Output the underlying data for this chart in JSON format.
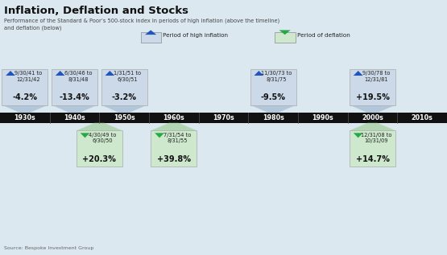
{
  "title": "Inflation, Deflation and Stocks",
  "subtitle": "Performance of the Standard & Poor’s 500-stock index in periods of high inflation (above the timeline)\nand deflation (below)",
  "source": "Source: Bespoke Investment Group",
  "bg_color": "#dce8f0",
  "timeline_labels": [
    "1930s",
    "1940s",
    "1950s",
    "1960s",
    "1970s",
    "1980s",
    "1990s",
    "2000s",
    "2010s"
  ],
  "inflation_boxes": [
    {
      "date_range": "9/30/41 to\n12/31/42",
      "value": "-4.2%",
      "col": 0.5
    },
    {
      "date_range": "6/30/46 to\n8/31/48",
      "value": "-13.4%",
      "col": 1.5
    },
    {
      "date_range": "1/31/51 to\n6/30/51",
      "value": "-3.2%",
      "col": 2.5
    },
    {
      "date_range": "11/30/73 to\n8/31/75",
      "value": "-9.5%",
      "col": 5.5
    },
    {
      "date_range": "9/30/78 to\n12/31/81",
      "value": "+19.5%",
      "col": 7.5
    }
  ],
  "deflation_boxes": [
    {
      "date_range": "4/30/49 to\n6/30/50",
      "value": "+20.3%",
      "col": 2.0
    },
    {
      "date_range": "7/31/54 to\n8/31/55",
      "value": "+39.8%",
      "col": 3.5
    },
    {
      "date_range": "12/31/08 to\n10/31/09",
      "value": "+14.7%",
      "col": 7.5
    }
  ],
  "inf_box_color": "#ccd9e8",
  "def_box_color": "#cde8cd",
  "inf_trap_color": "#aec4d8",
  "def_trap_color": "#aed4ae",
  "inf_tri_color": "#2255bb",
  "def_tri_color": "#22aa44",
  "timeline_color": "#111111",
  "box_edge_color": "#aaaaaa"
}
